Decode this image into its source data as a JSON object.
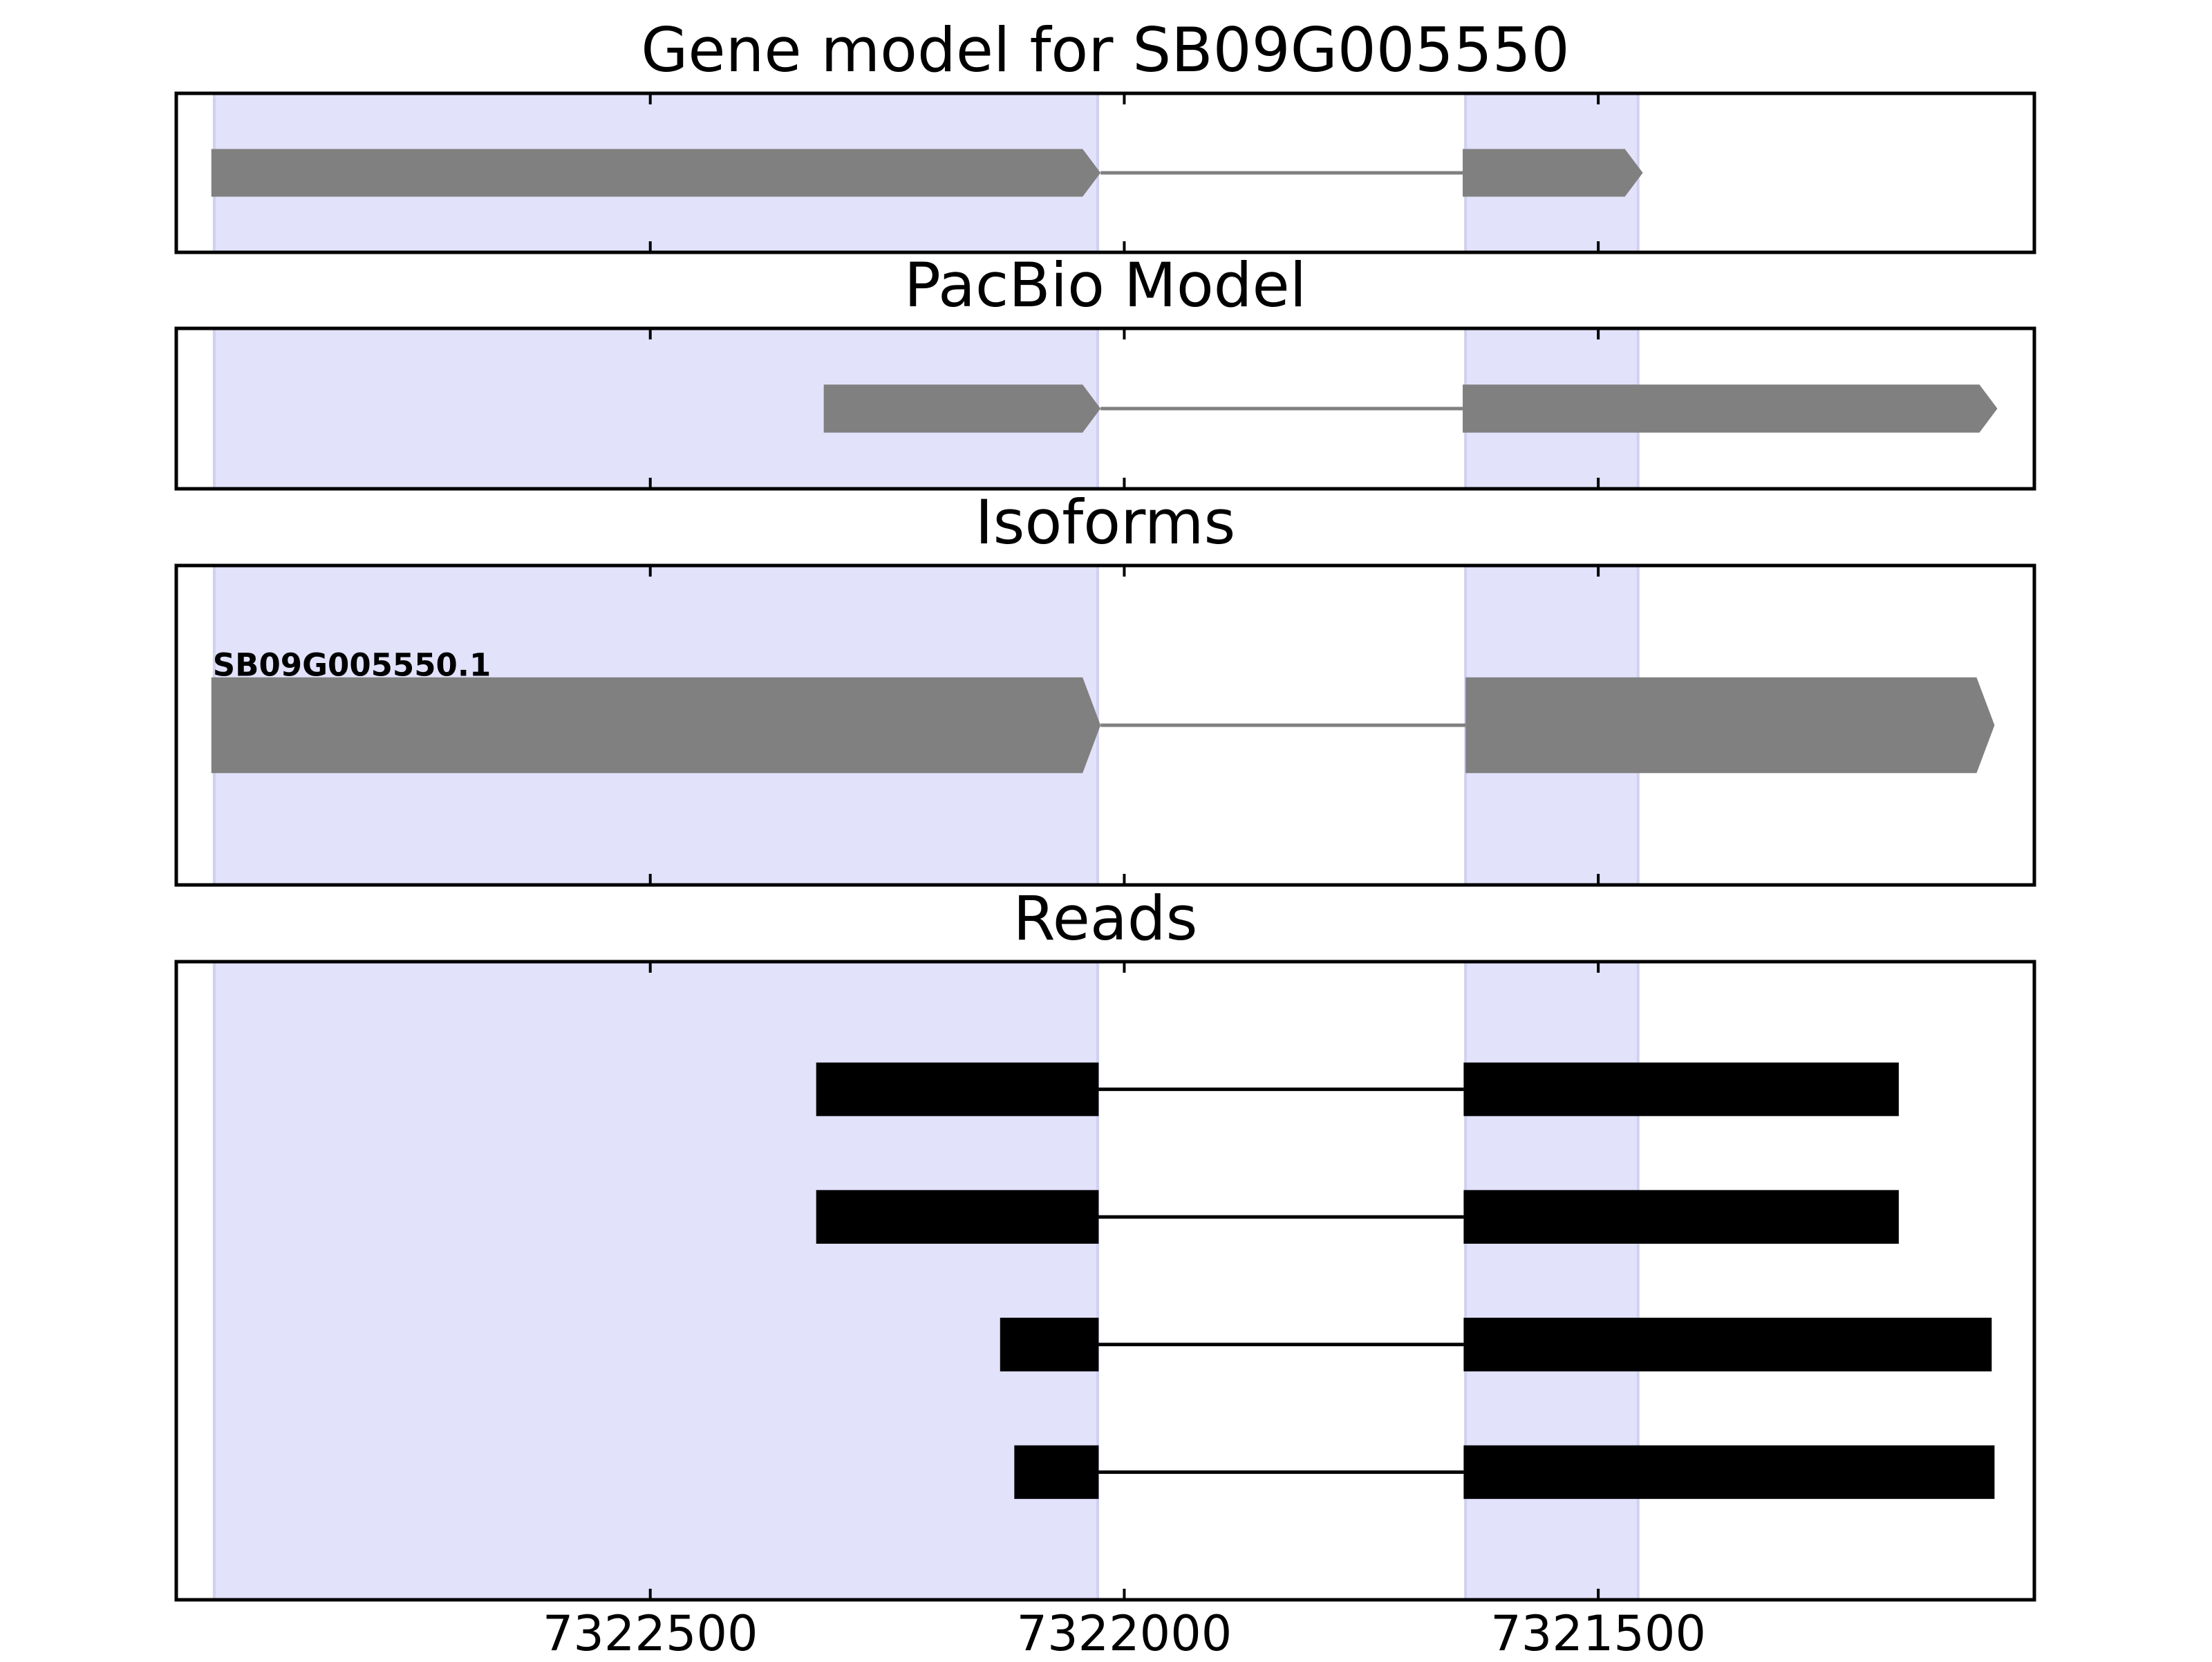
{
  "chart_data": [
    {
      "type": "track",
      "title": "Gene model for SB09G005550",
      "xlim": [
        7323000,
        7321040
      ],
      "highlights": [
        [
          7322960,
          7322028
        ],
        [
          7321640,
          7321458
        ]
      ],
      "highlight_color": "#e2e2fb",
      "arrow": true,
      "color": "#808080",
      "transcripts": [
        {
          "exons": [
            [
              7322963,
              7322025
            ],
            [
              7321643,
              7321453
            ]
          ]
        }
      ]
    },
    {
      "type": "track",
      "title": "PacBio Model",
      "xlim": [
        7323000,
        7321040
      ],
      "highlights": [
        [
          7322960,
          7322028
        ],
        [
          7321640,
          7321458
        ]
      ],
      "highlight_color": "#e2e2fb",
      "arrow": true,
      "color": "#808080",
      "transcripts": [
        {
          "exons": [
            [
              7322317,
              7322025
            ],
            [
              7321643,
              7321079
            ]
          ]
        }
      ]
    },
    {
      "type": "track",
      "title": "Isoforms",
      "xlim": [
        7323000,
        7321040
      ],
      "highlights": [
        [
          7322960,
          7322028
        ],
        [
          7321640,
          7321458
        ]
      ],
      "highlight_color": "#e2e2fb",
      "arrow": true,
      "color": "#808080",
      "transcripts": [
        {
          "name": "SB09G005550.1",
          "exons": [
            [
              7322963,
              7322025
            ],
            [
              7321640,
              7321082
            ]
          ]
        }
      ]
    },
    {
      "type": "track",
      "title": "Reads",
      "xlim": [
        7323000,
        7321040
      ],
      "xticks": [
        7322500,
        7322000,
        7321500
      ],
      "highlights": [
        [
          7322960,
          7322028
        ],
        [
          7321640,
          7321458
        ]
      ],
      "highlight_color": "#e2e2fb",
      "arrow": false,
      "color": "#000000",
      "transcripts": [
        {
          "exons": [
            [
              7322325,
              7322027
            ],
            [
              7321642,
              7321183
            ]
          ]
        },
        {
          "exons": [
            [
              7322325,
              7322027
            ],
            [
              7321642,
              7321183
            ]
          ]
        },
        {
          "exons": [
            [
              7322131,
              7322027
            ],
            [
              7321642,
              7321085
            ]
          ]
        },
        {
          "exons": [
            [
              7322116,
              7322027
            ],
            [
              7321642,
              7321082
            ]
          ]
        }
      ]
    }
  ]
}
